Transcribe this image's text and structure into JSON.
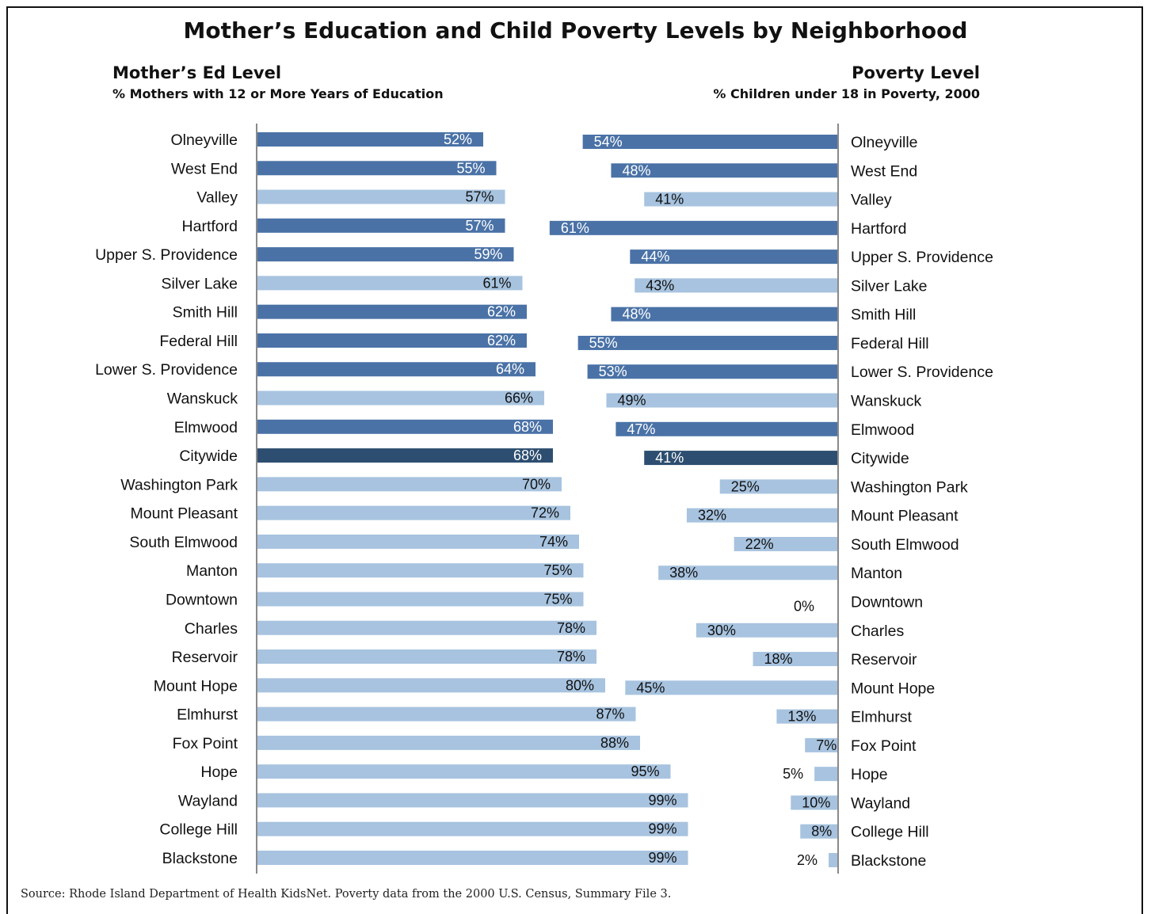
{
  "title": "Mother’s Education and Child Poverty Levels by Neighborhood",
  "left_header": {
    "title": "Mother’s Ed Level",
    "subtitle": "% Mothers with 12 or More Years of Education"
  },
  "right_header": {
    "title": "Poverty Level",
    "subtitle": "% Children under 18 in Poverty, 2000"
  },
  "source": "Source: Rhode Island Department of Health KidsNet. Poverty data from the 2000 U.S. Census, Summary File 3.",
  "colors": {
    "high_poverty": "#4a72a6",
    "low_poverty": "#a7c3df",
    "citywide": "#2d4e70",
    "axis": "#8a8a8a"
  },
  "chart_data": [
    {
      "type": "bar",
      "orientation": "horizontal",
      "name": "Mother’s Ed Level",
      "title": "Mother’s Ed Level",
      "ylabel": "% Mothers with 12 or More Years of Education",
      "unit": "%",
      "xlim": [
        0,
        100
      ],
      "categories": [
        "Olneyville",
        "West End",
        "Valley",
        "Hartford",
        "Upper S. Providence",
        "Silver Lake",
        "Smith Hill",
        "Federal Hill",
        "Lower S. Providence",
        "Wanskuck",
        "Elmwood",
        "Citywide",
        "Washington Park",
        "Mount Pleasant",
        "South Elmwood",
        "Manton",
        "Downtown",
        "Charles",
        "Reservoir",
        "Mount Hope",
        "Elmhurst",
        "Fox Point",
        "Hope",
        "Wayland",
        "College Hill",
        "Blackstone"
      ],
      "values": [
        52,
        55,
        57,
        57,
        59,
        61,
        62,
        62,
        64,
        66,
        68,
        68,
        70,
        72,
        74,
        75,
        75,
        78,
        78,
        80,
        87,
        88,
        95,
        99,
        99,
        99
      ],
      "labels": [
        "52%",
        "55%",
        "57%",
        "57%",
        "59%",
        "61%",
        "62%",
        "62%",
        "64%",
        "66%",
        "68%",
        "68%",
        "70%",
        "72%",
        "74%",
        "75%",
        "75%",
        "78%",
        "78%",
        "80%",
        "87%",
        "88%",
        "95%",
        "99%",
        "99%",
        "99%"
      ],
      "styles": [
        "high",
        "high",
        "low",
        "high",
        "high",
        "low",
        "high",
        "high",
        "high",
        "low",
        "high",
        "citywide",
        "low",
        "low",
        "low",
        "low",
        "low",
        "low",
        "low",
        "low",
        "low",
        "low",
        "low",
        "low",
        "low",
        "low"
      ],
      "grid": false
    },
    {
      "type": "bar",
      "orientation": "horizontal",
      "name": "Poverty Level",
      "title": "Poverty Level",
      "ylabel": "% Children under 18 in Poverty, 2000",
      "unit": "%",
      "xlim": [
        0,
        100
      ],
      "direction": "right-to-left",
      "categories": [
        "Olneyville",
        "West End",
        "Valley",
        "Hartford",
        "Upper S. Providence",
        "Silver Lake",
        "Smith Hill",
        "Federal Hill",
        "Lower S. Providence",
        "Wanskuck",
        "Elmwood",
        "Citywide",
        "Washington Park",
        "Mount Pleasant",
        "South Elmwood",
        "Manton",
        "Downtown",
        "Charles",
        "Reservoir",
        "Mount Hope",
        "Elmhurst",
        "Fox Point",
        "Hope",
        "Wayland",
        "College Hill",
        "Blackstone"
      ],
      "values": [
        54,
        48,
        41,
        61,
        44,
        43,
        48,
        55,
        53,
        49,
        47,
        41,
        25,
        32,
        22,
        38,
        0,
        30,
        18,
        45,
        13,
        7,
        5,
        10,
        8,
        2
      ],
      "labels": [
        "54%",
        "48%",
        "41%",
        "61%",
        "44%",
        "43%",
        "48%",
        "55%",
        "53%",
        "49%",
        "47%",
        "41%",
        "25%",
        "32%",
        "22%",
        "38%",
        "0%",
        "30%",
        "18%",
        "45%",
        "13%",
        "7%",
        "5%",
        "10%",
        "8%",
        "2%"
      ],
      "styles": [
        "high",
        "high",
        "low",
        "high",
        "high",
        "low",
        "high",
        "high",
        "high",
        "low",
        "high",
        "citywide",
        "low",
        "low",
        "low",
        "low",
        "low",
        "low",
        "low",
        "low",
        "low",
        "low",
        "low",
        "low",
        "low",
        "low"
      ],
      "grid": false
    }
  ]
}
